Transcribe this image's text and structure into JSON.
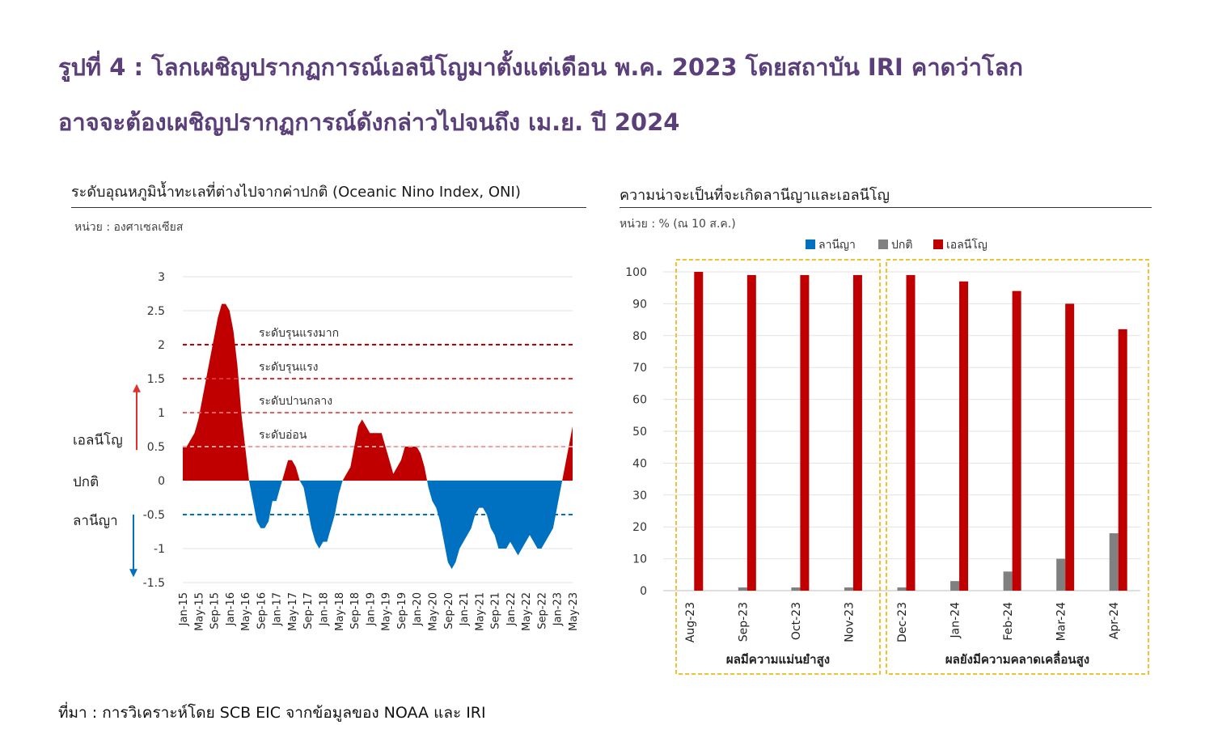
{
  "title": {
    "line1": "รูปที่ 4 : โลกเผชิญปรากฏการณ์เอลนีโญมาตั้งแต่เดือน พ.ค. 2023 โดยสถาบัน IRI คาดว่าโลก",
    "line2": "อาจจะต้องเผชิญปรากฏการณ์ดังกล่าวไปจนถึง เม.ย. ปี 2024"
  },
  "source": "ที่มา : การวิเคราะห์โดย SCB EIC จากข้อมูลของ NOAA และ IRI",
  "colors": {
    "el_nino": "#c00000",
    "la_nina": "#0070c0",
    "neutral": "#808080",
    "title": "#5b3f7a",
    "frame": "#f2c12e"
  },
  "chart_data": [
    {
      "type": "area",
      "title": "ระดับอุณหภูมิน้ำทะเลที่ต่างไปจากค่าปกติ (Oceanic Nino Index, ONI)",
      "unit": "หน่วย : องศาเซลเซียส",
      "ylim": [
        -1.5,
        3
      ],
      "yticks": [
        "3",
        "2.5",
        "2",
        "1.5",
        "1",
        "0.5",
        "0",
        "-0.5",
        "-1",
        "-1.5"
      ],
      "ytick_values": [
        3,
        2.5,
        2,
        1.5,
        1,
        0.5,
        0,
        -0.5,
        -1,
        -1.5
      ],
      "xtick_labels": [
        "Jan-15",
        "May-15",
        "Sep-15",
        "Jan-16",
        "May-16",
        "Sep-16",
        "Jan-17",
        "May-17",
        "Sep-17",
        "Jan-18",
        "May-18",
        "Sep-18",
        "Jan-19",
        "May-19",
        "Sep-19",
        "Jan-20",
        "May-20",
        "Sep-20",
        "Jan-21",
        "May-21",
        "Sep-21",
        "Jan-22",
        "May-22",
        "Sep-22",
        "Jan-23",
        "May-23"
      ],
      "series": {
        "x_start": "Jan-15",
        "frequency": "monthly",
        "values": [
          0.5,
          0.5,
          0.6,
          0.7,
          0.9,
          1.2,
          1.5,
          1.8,
          2.1,
          2.4,
          2.6,
          2.6,
          2.5,
          2.2,
          1.7,
          1.0,
          0.5,
          0.0,
          -0.3,
          -0.6,
          -0.7,
          -0.7,
          -0.6,
          -0.3,
          -0.3,
          -0.1,
          0.1,
          0.3,
          0.3,
          0.2,
          0.0,
          -0.1,
          -0.4,
          -0.7,
          -0.9,
          -1.0,
          -0.9,
          -0.9,
          -0.7,
          -0.5,
          -0.2,
          0.0,
          0.1,
          0.2,
          0.5,
          0.8,
          0.9,
          0.8,
          0.7,
          0.7,
          0.7,
          0.7,
          0.5,
          0.3,
          0.1,
          0.2,
          0.3,
          0.5,
          0.5,
          0.5,
          0.5,
          0.4,
          0.2,
          -0.1,
          -0.3,
          -0.4,
          -0.6,
          -0.9,
          -1.2,
          -1.3,
          -1.2,
          -1.0,
          -0.9,
          -0.8,
          -0.7,
          -0.5,
          -0.4,
          -0.4,
          -0.5,
          -0.7,
          -0.8,
          -1.0,
          -1.0,
          -1.0,
          -0.9,
          -1.0,
          -1.1,
          -1.0,
          -0.9,
          -0.8,
          -0.9,
          -1.0,
          -1.0,
          -0.9,
          -0.8,
          -0.7,
          -0.4,
          -0.1,
          0.2,
          0.5,
          0.8
        ]
      },
      "thresholds": [
        {
          "value": 2.0,
          "label": "ระดับรุนแรงมาก",
          "color": "#c00000"
        },
        {
          "value": 1.5,
          "label": "ระดับรุนแรง",
          "color": "#e03030"
        },
        {
          "value": 1.0,
          "label": "ระดับปานกลาง",
          "color": "#e86060"
        },
        {
          "value": 0.5,
          "label": "ระดับอ่อน",
          "color": "#f0a0a0"
        },
        {
          "value": -0.5,
          "label": "",
          "color": "#0070c0"
        }
      ],
      "side_labels": {
        "el_nino": "เอลนีโญ",
        "neutral": "ปกติ",
        "la_nina": "ลานีญา"
      }
    },
    {
      "type": "bar",
      "title": "ความน่าจะเป็นที่จะเกิดลานีญาและเอลนีโญ",
      "unit": "หน่วย : % (ณ 10 ส.ค.)",
      "ylim": [
        0,
        100
      ],
      "yticks": [
        "100",
        "90",
        "80",
        "70",
        "60",
        "50",
        "40",
        "30",
        "20",
        "10",
        "0"
      ],
      "ytick_values": [
        100,
        90,
        80,
        70,
        60,
        50,
        40,
        30,
        20,
        10,
        0
      ],
      "categories": [
        "Aug-23",
        "Sep-23",
        "Oct-23",
        "Nov-23",
        "Dec-23",
        "Jan-24",
        "Feb-24",
        "Mar-24",
        "Apr-24"
      ],
      "series": [
        {
          "name": "ลานีญา",
          "color": "#0070c0",
          "values": [
            0,
            0,
            0,
            0,
            0,
            0,
            0,
            0,
            0
          ]
        },
        {
          "name": "ปกติ",
          "color": "#808080",
          "values": [
            0,
            1,
            1,
            1,
            1,
            3,
            6,
            10,
            18
          ]
        },
        {
          "name": "เอลนีโญ",
          "color": "#c00000",
          "values": [
            100,
            99,
            99,
            99,
            99,
            97,
            94,
            90,
            82
          ]
        }
      ],
      "groups": [
        {
          "label": "ผลมีความแม่นยำสูง",
          "from": 0,
          "to": 3
        },
        {
          "label": "ผลยังมีความคลาดเคลื่อนสูง",
          "from": 4,
          "to": 8
        }
      ]
    }
  ]
}
